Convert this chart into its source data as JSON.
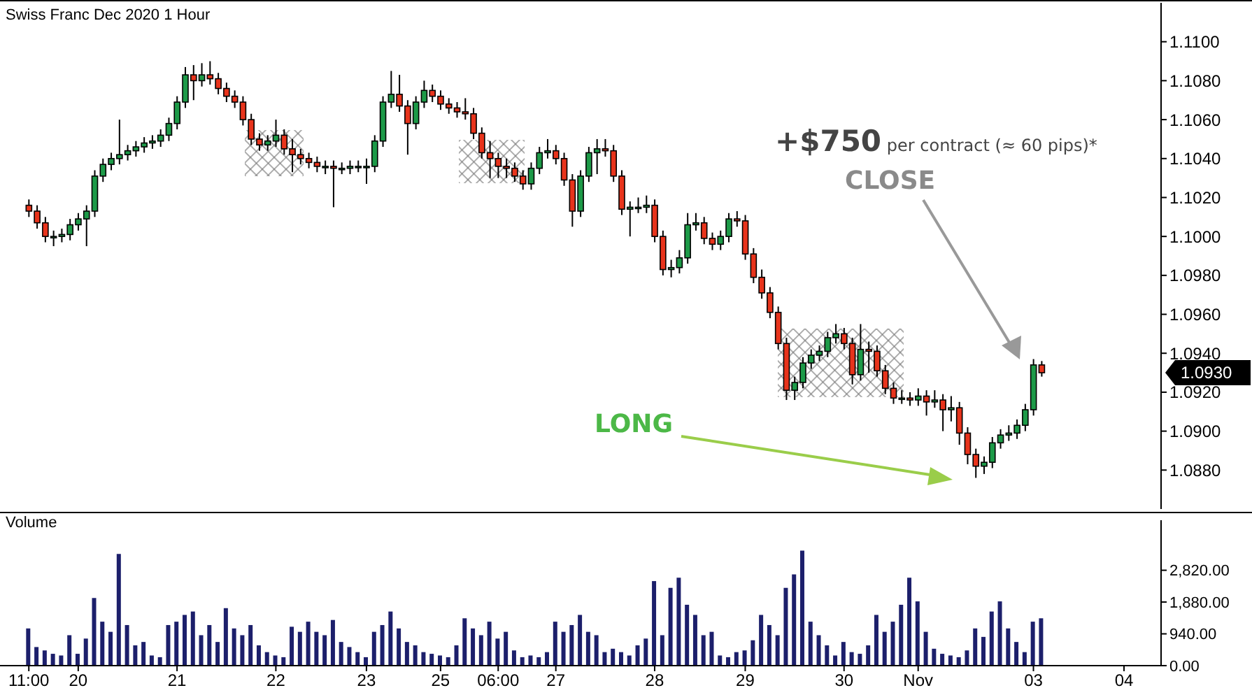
{
  "chart_data": [
    {
      "type": "candlestick",
      "title": "Swiss Franc Dec 2020  1 Hour",
      "categories": [
        null,
        null,
        null,
        null,
        null,
        null,
        null,
        null,
        null,
        null,
        null,
        null,
        null,
        null,
        null,
        null,
        null,
        null,
        null,
        null,
        null,
        null,
        null,
        null,
        null,
        null,
        null,
        null,
        null,
        null,
        null,
        null,
        null,
        null,
        null,
        null,
        null,
        null,
        null,
        null,
        null,
        null,
        null,
        null,
        null,
        null,
        null,
        null,
        null,
        null,
        null,
        null,
        null,
        null,
        null,
        null,
        null,
        null,
        null,
        null,
        null,
        null,
        null,
        null,
        null,
        null,
        null,
        null,
        null,
        null,
        null,
        null,
        null,
        null,
        null,
        null,
        null,
        null,
        null,
        null,
        null,
        null,
        null,
        null,
        null,
        null,
        null,
        null,
        null,
        null,
        null,
        null,
        null,
        null,
        null,
        null,
        null,
        null,
        null,
        null,
        null,
        null,
        null,
        null,
        null,
        null,
        null,
        null,
        null,
        null,
        null,
        null,
        null,
        null,
        null,
        null,
        null,
        null,
        null,
        null,
        null,
        null,
        null,
        null,
        null,
        null,
        null,
        null,
        null,
        null,
        null,
        null,
        null,
        null,
        null,
        null,
        null,
        null
      ],
      "ohlc": [
        [
          1.1016,
          1.1019,
          1.101,
          1.1013
        ],
        [
          1.1013,
          1.1016,
          1.1004,
          1.1007
        ],
        [
          1.1007,
          1.101,
          1.0997,
          1.1
        ],
        [
          1.1,
          1.1003,
          1.0995,
          1.1
        ],
        [
          1.1,
          1.1004,
          1.0997,
          1.1001
        ],
        [
          1.1001,
          1.1009,
          1.0998,
          1.1006
        ],
        [
          1.1006,
          1.1012,
          1.1003,
          1.1009
        ],
        [
          1.1009,
          1.1016,
          1.0995,
          1.1013
        ],
        [
          1.1013,
          1.1034,
          1.101,
          1.1031
        ],
        [
          1.1031,
          1.104,
          1.1028,
          1.1037
        ],
        [
          1.1037,
          1.1043,
          1.1034,
          1.104
        ],
        [
          1.104,
          1.106,
          1.1037,
          1.1042
        ],
        [
          1.1042,
          1.1047,
          1.1039,
          1.1044
        ],
        [
          1.1044,
          1.1049,
          1.1041,
          1.1046
        ],
        [
          1.1046,
          1.1051,
          1.1043,
          1.1048
        ],
        [
          1.1048,
          1.1052,
          1.1045,
          1.1049
        ],
        [
          1.1049,
          1.1055,
          1.1046,
          1.1052
        ],
        [
          1.1052,
          1.1061,
          1.1049,
          1.1058
        ],
        [
          1.1058,
          1.1072,
          1.1055,
          1.1069
        ],
        [
          1.1069,
          1.1087,
          1.1066,
          1.1083
        ],
        [
          1.1083,
          1.1088,
          1.107,
          1.108
        ],
        [
          1.108,
          1.1089,
          1.1077,
          1.1083
        ],
        [
          1.1083,
          1.109,
          1.1078,
          1.1081
        ],
        [
          1.1081,
          1.1084,
          1.1073,
          1.1076
        ],
        [
          1.1076,
          1.1079,
          1.1069,
          1.1072
        ],
        [
          1.1072,
          1.1075,
          1.1066,
          1.1069
        ],
        [
          1.1069,
          1.1072,
          1.1057,
          1.106
        ],
        [
          1.106,
          1.1063,
          1.1047,
          1.105
        ],
        [
          1.105,
          1.1053,
          1.1044,
          1.1047
        ],
        [
          1.1047,
          1.1052,
          1.1044,
          1.1049
        ],
        [
          1.1049,
          1.106,
          1.1046,
          1.1052
        ],
        [
          1.1052,
          1.1055,
          1.1042,
          1.1045
        ],
        [
          1.1045,
          1.105,
          1.1033,
          1.1042
        ],
        [
          1.1042,
          1.1045,
          1.1037,
          1.104
        ],
        [
          1.104,
          1.1043,
          1.1035,
          1.1038
        ],
        [
          1.1038,
          1.1041,
          1.1033,
          1.1036
        ],
        [
          1.1036,
          1.1039,
          1.1032,
          1.1036
        ],
        [
          1.1036,
          1.1039,
          1.1015,
          1.1035
        ],
        [
          1.1035,
          1.1038,
          1.1032,
          1.1035
        ],
        [
          1.1035,
          1.1039,
          1.1032,
          1.1036
        ],
        [
          1.1036,
          1.1039,
          1.1033,
          1.1036
        ],
        [
          1.1036,
          1.104,
          1.1027,
          1.1036
        ],
        [
          1.1036,
          1.1052,
          1.1033,
          1.1049
        ],
        [
          1.1049,
          1.1072,
          1.1046,
          1.1069
        ],
        [
          1.1069,
          1.1085,
          1.1066,
          1.1073
        ],
        [
          1.1073,
          1.1083,
          1.1064,
          1.1067
        ],
        [
          1.1067,
          1.107,
          1.1042,
          1.1058
        ],
        [
          1.1058,
          1.1072,
          1.1055,
          1.1069
        ],
        [
          1.1069,
          1.108,
          1.1066,
          1.1075
        ],
        [
          1.1075,
          1.1078,
          1.1069,
          1.1072
        ],
        [
          1.1072,
          1.1075,
          1.1065,
          1.1068
        ],
        [
          1.1068,
          1.1071,
          1.1063,
          1.1066
        ],
        [
          1.1066,
          1.1069,
          1.1061,
          1.1064
        ],
        [
          1.1064,
          1.1071,
          1.106,
          1.1063
        ],
        [
          1.1063,
          1.1066,
          1.105,
          1.1053
        ],
        [
          1.1053,
          1.1056,
          1.104,
          1.1043
        ],
        [
          1.1043,
          1.1049,
          1.103,
          1.104
        ],
        [
          1.104,
          1.1043,
          1.103,
          1.1036
        ],
        [
          1.1036,
          1.104,
          1.103,
          1.1035
        ],
        [
          1.1035,
          1.1038,
          1.1028,
          1.1031
        ],
        [
          1.1031,
          1.1034,
          1.1024,
          1.1027
        ],
        [
          1.1027,
          1.1038,
          1.1024,
          1.1035
        ],
        [
          1.1035,
          1.1046,
          1.1032,
          1.1043
        ],
        [
          1.1043,
          1.105,
          1.104,
          1.1044
        ],
        [
          1.1044,
          1.1047,
          1.1037,
          1.104
        ],
        [
          1.104,
          1.1043,
          1.1026,
          1.1029
        ],
        [
          1.1029,
          1.1032,
          1.1005,
          1.1013
        ],
        [
          1.1013,
          1.1034,
          1.101,
          1.1031
        ],
        [
          1.1031,
          1.1046,
          1.1028,
          1.1043
        ],
        [
          1.1043,
          1.105,
          1.1032,
          1.1045
        ],
        [
          1.1045,
          1.105,
          1.1041,
          1.1044
        ],
        [
          1.1044,
          1.1047,
          1.1028,
          1.1031
        ],
        [
          1.1031,
          1.1034,
          1.1011,
          1.1014
        ],
        [
          1.1014,
          1.1018,
          1.1,
          1.1015
        ],
        [
          1.1015,
          1.102,
          1.1012,
          1.1015
        ],
        [
          1.1015,
          1.1021,
          1.1012,
          1.1016
        ],
        [
          1.1016,
          1.1019,
          1.0997,
          1.1
        ],
        [
          1.1,
          1.1003,
          1.098,
          1.0983
        ],
        [
          1.0983,
          1.0988,
          1.0979,
          1.0984
        ],
        [
          1.0984,
          1.0993,
          1.0981,
          1.0989
        ],
        [
          1.0989,
          1.1012,
          1.0986,
          1.1006
        ],
        [
          1.1006,
          1.1012,
          1.1003,
          1.1007
        ],
        [
          1.1007,
          1.101,
          1.0996,
          1.0999
        ],
        [
          1.0999,
          1.1002,
          1.0993,
          1.0996
        ],
        [
          1.0996,
          1.1003,
          1.0993,
          1.1
        ],
        [
          1.1,
          1.1012,
          1.0997,
          1.1009
        ],
        [
          1.1009,
          1.1013,
          1.1005,
          1.1008
        ],
        [
          1.1008,
          1.1011,
          1.0988,
          1.0991
        ],
        [
          1.0991,
          1.0994,
          1.0976,
          1.0979
        ],
        [
          1.0979,
          1.0983,
          1.0968,
          1.0971
        ],
        [
          1.0971,
          1.0974,
          1.0958,
          1.0961
        ],
        [
          1.0961,
          1.0964,
          1.0942,
          1.0945
        ],
        [
          1.0945,
          1.0948,
          1.0916,
          1.0921
        ],
        [
          1.0921,
          1.0928,
          1.0916,
          1.0925
        ],
        [
          1.0925,
          1.0938,
          1.0922,
          1.0935
        ],
        [
          1.0935,
          1.0942,
          1.0932,
          1.0939
        ],
        [
          1.0939,
          1.0944,
          1.0936,
          1.0941
        ],
        [
          1.0941,
          1.0951,
          1.0938,
          1.0948
        ],
        [
          1.0948,
          1.0955,
          1.0945,
          1.095
        ],
        [
          1.095,
          1.0953,
          1.0942,
          1.0945
        ],
        [
          1.0945,
          1.0948,
          1.0924,
          1.0929
        ],
        [
          1.0929,
          1.0955,
          1.0926,
          1.0942
        ],
        [
          1.0942,
          1.0946,
          1.093,
          1.0941
        ],
        [
          1.0941,
          1.0944,
          1.0928,
          1.0931
        ],
        [
          1.0931,
          1.0934,
          1.0919,
          1.0922
        ],
        [
          1.0922,
          1.0925,
          1.0914,
          1.0917
        ],
        [
          1.0917,
          1.0921,
          1.0914,
          1.0917
        ],
        [
          1.0917,
          1.092,
          1.0913,
          1.0916
        ],
        [
          1.0916,
          1.0922,
          1.0913,
          1.0918
        ],
        [
          1.0918,
          1.0921,
          1.0908,
          1.0915
        ],
        [
          1.0915,
          1.0921,
          1.0912,
          1.0916
        ],
        [
          1.0916,
          1.0919,
          1.09,
          1.0911
        ],
        [
          1.0911,
          1.0918,
          1.0905,
          1.0912
        ],
        [
          1.0912,
          1.0915,
          1.0893,
          1.0899
        ],
        [
          1.0899,
          1.0902,
          1.0883,
          1.0888
        ],
        [
          1.0888,
          1.0891,
          1.0876,
          1.0882
        ],
        [
          1.0882,
          1.0887,
          1.0878,
          1.0884
        ],
        [
          1.0884,
          1.0897,
          1.0881,
          1.0894
        ],
        [
          1.0894,
          1.0901,
          1.0891,
          1.0898
        ],
        [
          1.0898,
          1.0903,
          1.0895,
          1.0899
        ],
        [
          1.0899,
          1.0906,
          1.0896,
          1.0903
        ],
        [
          1.0903,
          1.0914,
          1.09,
          1.0911
        ],
        [
          1.0911,
          1.0937,
          1.0908,
          1.0934
        ],
        [
          1.0934,
          1.0936,
          1.0928,
          1.093
        ],
        null,
        null,
        null,
        null,
        null,
        null,
        null,
        null,
        null,
        null,
        null,
        null,
        null,
        null
      ],
      "ylim": [
        1.086,
        1.112
      ],
      "yticks": [
        {
          "value": 1.088,
          "label": "1.0880"
        },
        {
          "value": 1.09,
          "label": "1.0900"
        },
        {
          "value": 1.092,
          "label": "1.0920"
        },
        {
          "value": 1.094,
          "label": "1.0940"
        },
        {
          "value": 1.096,
          "label": "1.0960"
        },
        {
          "value": 1.098,
          "label": "1.0980"
        },
        {
          "value": 1.1,
          "label": "1.1000"
        },
        {
          "value": 1.102,
          "label": "1.1020"
        },
        {
          "value": 1.104,
          "label": "1.1040"
        },
        {
          "value": 1.106,
          "label": "1.1060"
        },
        {
          "value": 1.108,
          "label": "1.1080"
        },
        {
          "value": 1.11,
          "label": "1.1100"
        }
      ],
      "annotations": [
        "+$750 per contract (≈ 60 pips)*",
        "CLOSE",
        "LONG",
        "1.0930"
      ],
      "tick_labels": "y"
    },
    {
      "type": "bar",
      "title": "Volume",
      "color": "#1c1f6b",
      "categories": [
        "11:00",
        null,
        null,
        null,
        null,
        null,
        "20",
        null,
        null,
        null,
        null,
        null,
        null,
        null,
        null,
        null,
        null,
        null,
        "21",
        null,
        null,
        null,
        null,
        null,
        null,
        null,
        null,
        null,
        null,
        null,
        "22",
        null,
        null,
        null,
        null,
        null,
        null,
        null,
        null,
        null,
        null,
        "23",
        null,
        null,
        null,
        null,
        null,
        null,
        null,
        null,
        "25",
        null,
        null,
        null,
        null,
        null,
        null,
        "06:00",
        null,
        null,
        null,
        null,
        null,
        null,
        "27",
        null,
        null,
        null,
        null,
        null,
        null,
        null,
        null,
        null,
        null,
        null,
        "28",
        null,
        null,
        null,
        null,
        null,
        null,
        null,
        null,
        null,
        null,
        "29",
        null,
        null,
        null,
        null,
        null,
        null,
        null,
        null,
        null,
        null,
        null,
        "30",
        null,
        null,
        null,
        null,
        null,
        null,
        null,
        null,
        "Nov",
        null,
        null,
        null,
        null,
        null,
        null,
        null,
        null,
        null,
        null,
        null,
        null,
        null,
        "03",
        null,
        null,
        null,
        null,
        null,
        null,
        null,
        null,
        null,
        null,
        "04",
        null,
        null,
        null,
        null
      ],
      "values": [
        1100,
        550,
        450,
        350,
        300,
        900,
        350,
        800,
        2000,
        1300,
        1000,
        3300,
        1200,
        600,
        700,
        300,
        250,
        1200,
        1300,
        1500,
        1600,
        900,
        1200,
        700,
        1700,
        1100,
        900,
        1200,
        600,
        400,
        300,
        250,
        1150,
        1000,
        1300,
        1000,
        900,
        1350,
        700,
        550,
        400,
        250,
        1000,
        1200,
        1600,
        1100,
        700,
        600,
        400,
        350,
        300,
        250,
        600,
        1400,
        1100,
        900,
        1300,
        800,
        1000,
        450,
        250,
        300,
        250,
        400,
        1300,
        1000,
        1200,
        1500,
        1000,
        900,
        400,
        500,
        400,
        300,
        600,
        800,
        2500,
        900,
        2300,
        2600,
        1800,
        1500,
        900,
        1000,
        300,
        250,
        400,
        450,
        750,
        1500,
        1200,
        900,
        2300,
        2700,
        3400,
        1300,
        900,
        600,
        300,
        700,
        400,
        350,
        600,
        1500,
        1000,
        1300,
        1800,
        2600,
        1900,
        1000,
        500,
        350,
        300,
        250,
        450,
        1100,
        850,
        1600,
        1900,
        1100,
        700,
        400,
        1300,
        1400,
        null,
        null,
        null,
        null,
        null,
        null,
        null,
        null,
        null,
        null,
        null,
        null,
        null,
        null
      ],
      "ylim": [
        0,
        4300
      ],
      "yticks": [
        {
          "value": 0,
          "label": "0.00"
        },
        {
          "value": 940,
          "label": "940.00"
        },
        {
          "value": 1880,
          "label": "1,880.00"
        },
        {
          "value": 2820,
          "label": "2,820.00"
        }
      ]
    }
  ]
}
